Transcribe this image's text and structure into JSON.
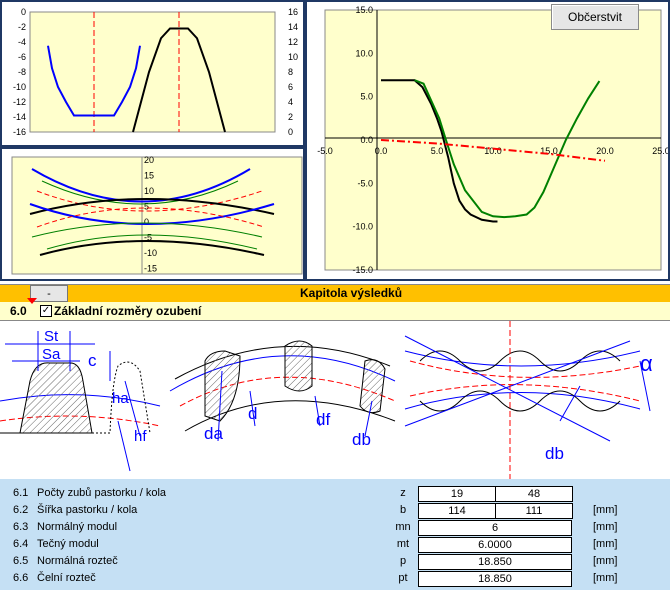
{
  "chart_top_left": {
    "left_yaxis": {
      "ticks": [
        "0",
        "-2",
        "-4",
        "-6",
        "-8",
        "-10",
        "-12",
        "-14",
        "-16"
      ]
    },
    "right_yaxis": {
      "ticks": [
        "16",
        "14",
        "12",
        "10",
        "8",
        "6",
        "4",
        "2",
        "0"
      ]
    },
    "series": [
      {
        "color": "#0000ff",
        "x": [
          -4.6,
          -4.2,
          -3.6,
          -2.8,
          -2.0,
          -1.0,
          1.0,
          2.0,
          2.8,
          3.6,
          4.2,
          4.6
        ],
        "y": [
          -4.5,
          -7.5,
          -10,
          -12,
          -13.8,
          -13.8,
          -13.8,
          -13.8,
          -12,
          -10,
          -7.5,
          -4.5
        ]
      },
      {
        "color": "#000000",
        "x": [
          -4.6,
          -4.0,
          -3.0,
          -1.8,
          -0.9,
          0.9,
          1.8,
          3.0,
          4.0,
          4.6
        ],
        "y": [
          0,
          3,
          8,
          12.5,
          13.8,
          13.8,
          12.5,
          8,
          3,
          0
        ]
      }
    ]
  },
  "chart_bottom_left": {
    "yaxis": {
      "ticks": [
        "20",
        "15",
        "10",
        "5",
        "0",
        "-5",
        "-10",
        "-15"
      ]
    }
  },
  "chart_right": {
    "button_label": "Občerstvit",
    "xaxis": {
      "ticks": [
        "-5.0",
        "0.0",
        "5.0",
        "10.0",
        "15.0",
        "20.0",
        "25.0"
      ]
    },
    "yaxis": {
      "ticks": [
        "15.0",
        "10.0",
        "5.0",
        "0.0",
        "-5.0",
        "-10.0",
        "-15.0"
      ]
    },
    "chart_data": {
      "type": "line",
      "xlim": [
        -5,
        25
      ],
      "ylim": [
        -15,
        15
      ],
      "series": [
        {
          "color": "#000000",
          "x": [
            0,
            3,
            3.7,
            4.5,
            5,
            5.4,
            5.7,
            6.0,
            6.5,
            7,
            7.5,
            8,
            9,
            10,
            10.4
          ],
          "y": [
            6.9,
            6.9,
            6.1,
            4.1,
            2.5,
            1.0,
            -0.5,
            -2,
            -5,
            -7,
            -8,
            -8.6,
            -9.2,
            -9.4,
            -9.4
          ]
        },
        {
          "color": "#008000",
          "x": [
            3,
            3.8,
            4.5,
            5.2,
            5.8,
            6.5,
            7.5,
            9,
            10,
            11,
            12,
            13,
            13.7,
            14.5,
            15.5,
            16.5,
            17.5,
            18.5,
            19.5
          ],
          "y": [
            6.9,
            6.5,
            4.5,
            2.5,
            0,
            -2.8,
            -5.8,
            -8.3,
            -8.8,
            -8.9,
            -8.8,
            -8.6,
            -7.8,
            -6,
            -3,
            0,
            2.5,
            4.8,
            6.8
          ]
        },
        {
          "color": "#ff0000",
          "dashed": true,
          "x": [
            0,
            5,
            10,
            15,
            20
          ],
          "y": [
            0,
            -0.4,
            -1.0,
            -1.6,
            -2.4
          ]
        }
      ]
    }
  },
  "results_header": {
    "collapse_label": "-",
    "title": "Kapitola výsledků"
  },
  "section": {
    "number": "6.0",
    "checkbox_mark": "✓",
    "title": "Základní rozměry ozubení"
  },
  "diagram_labels": {
    "st": "St",
    "sa": "Sa",
    "c": "c",
    "ha": "ha",
    "hf": "hf",
    "da": "da",
    "d": "d",
    "df": "df",
    "db1": "db",
    "db2": "db",
    "alpha": "α"
  },
  "rows": [
    {
      "num": "6.1",
      "label": "Počty zubů pastorku / kola",
      "symbol": "z",
      "v1": "19",
      "v2": "48",
      "unit": ""
    },
    {
      "num": "6.2",
      "label": "Šířka pastorku / kola",
      "symbol": "b",
      "v1": "114",
      "v2": "111",
      "unit": "[mm]"
    },
    {
      "num": "6.3",
      "label": "Normálný modul",
      "symbol": "mn",
      "value": "6",
      "unit": "[mm]"
    },
    {
      "num": "6.4",
      "label": "Tečný modul",
      "symbol": "mt",
      "value": "6.0000",
      "unit": "[mm]"
    },
    {
      "num": "6.5",
      "label": "Normálná rozteč",
      "symbol": "p",
      "value": "18.850",
      "unit": "[mm]"
    },
    {
      "num": "6.6",
      "label": "Čelní rozteč",
      "symbol": "pt",
      "value": "18.850",
      "unit": "[mm]"
    }
  ]
}
